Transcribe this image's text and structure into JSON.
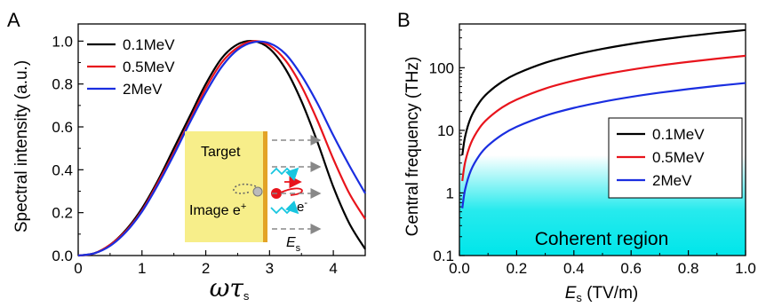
{
  "chart_data": [
    {
      "type": "line",
      "panel_label": "A",
      "xlabel_main": "ωτ",
      "xlabel_sub": "s",
      "ylabel": "Spectral intensity (a.u.)",
      "xlim": [
        0,
        4.5
      ],
      "ylim": [
        0,
        1.08
      ],
      "xticks": [
        "0",
        "1",
        "2",
        "3",
        "4"
      ],
      "yticks": [
        "0.0",
        "0.2",
        "0.4",
        "0.6",
        "0.8",
        "1.0"
      ],
      "legend_position": "top-left",
      "series": [
        {
          "name": "0.1MeV",
          "color": "#000000",
          "x": [
            0,
            0.25,
            0.5,
            0.75,
            1.0,
            1.25,
            1.5,
            1.75,
            2.0,
            2.25,
            2.5,
            2.75,
            3.0,
            3.25,
            3.5,
            3.75,
            4.0,
            4.25,
            4.5
          ],
          "y": [
            0,
            0.01,
            0.05,
            0.12,
            0.22,
            0.35,
            0.5,
            0.65,
            0.8,
            0.92,
            0.985,
            1.0,
            0.965,
            0.87,
            0.72,
            0.53,
            0.32,
            0.15,
            0.03
          ]
        },
        {
          "name": "0.5MeV",
          "color": "#e8141c",
          "x": [
            0,
            0.25,
            0.5,
            0.75,
            1.0,
            1.25,
            1.5,
            1.75,
            2.0,
            2.25,
            2.5,
            2.75,
            3.0,
            3.25,
            3.5,
            3.75,
            4.0,
            4.25,
            4.5
          ],
          "y": [
            0,
            0.01,
            0.05,
            0.115,
            0.21,
            0.34,
            0.48,
            0.63,
            0.78,
            0.9,
            0.97,
            1.0,
            0.98,
            0.91,
            0.79,
            0.63,
            0.45,
            0.29,
            0.17
          ]
        },
        {
          "name": "2MeV",
          "color": "#1a2ee0",
          "x": [
            0,
            0.25,
            0.5,
            0.75,
            1.0,
            1.25,
            1.5,
            1.75,
            2.0,
            2.25,
            2.5,
            2.75,
            3.0,
            3.25,
            3.5,
            3.75,
            4.0,
            4.25,
            4.5
          ],
          "y": [
            0,
            0.01,
            0.045,
            0.11,
            0.205,
            0.33,
            0.47,
            0.62,
            0.76,
            0.88,
            0.96,
            0.995,
            0.99,
            0.94,
            0.84,
            0.71,
            0.56,
            0.42,
            0.29
          ]
        }
      ],
      "inset": {
        "target_label": "Target",
        "image_label": "Image e",
        "image_sup": "+",
        "electron_label": "e",
        "electron_sup": "-",
        "field_label": "E",
        "field_sub": "s",
        "target_color": "#f7ee8a",
        "edge_color": "#e3a326",
        "electron_color": "#e8141c",
        "wave_color": "#18c6e0"
      }
    },
    {
      "type": "line",
      "panel_label": "B",
      "xlabel_main": "E",
      "xlabel_sub": "s",
      "xlabel_rest": " (TV/m)",
      "ylabel": "Central frequency (THz)",
      "yscale": "log",
      "xlim": [
        0,
        1.0
      ],
      "ylim": [
        0.1,
        500
      ],
      "xticks": [
        "0.0",
        "0.2",
        "0.4",
        "0.6",
        "0.8",
        "1.0"
      ],
      "yticks": [
        "0.1",
        "1",
        "10",
        "100"
      ],
      "legend_position": "center-right",
      "region_label": "Coherent region",
      "region_ymax": 4,
      "region_color": "#00e6ea",
      "series": [
        {
          "name": "0.1MeV",
          "color": "#000000",
          "x": [
            0.01,
            0.02,
            0.04,
            0.07,
            0.1,
            0.15,
            0.2,
            0.3,
            0.4,
            0.5,
            0.6,
            0.7,
            0.8,
            0.9,
            1.0
          ],
          "y": [
            4,
            8,
            16,
            28,
            40,
            60,
            80,
            120,
            160,
            200,
            240,
            280,
            320,
            360,
            400
          ]
        },
        {
          "name": "0.5MeV",
          "color": "#e8141c",
          "x": [
            0.01,
            0.02,
            0.04,
            0.07,
            0.1,
            0.15,
            0.2,
            0.3,
            0.4,
            0.5,
            0.6,
            0.7,
            0.8,
            0.9,
            1.0
          ],
          "y": [
            1.55,
            3.1,
            6.2,
            10.9,
            15.5,
            23.3,
            31,
            46.5,
            62,
            77.5,
            93,
            108.5,
            124,
            139.5,
            155
          ]
        },
        {
          "name": "2MeV",
          "color": "#1a2ee0",
          "x": [
            0.01,
            0.02,
            0.04,
            0.07,
            0.1,
            0.15,
            0.2,
            0.3,
            0.4,
            0.5,
            0.6,
            0.7,
            0.8,
            0.9,
            1.0
          ],
          "y": [
            0.57,
            1.14,
            2.28,
            3.99,
            5.7,
            8.55,
            11.4,
            17.1,
            22.8,
            28.5,
            34.2,
            39.9,
            45.6,
            51.3,
            57
          ]
        }
      ]
    }
  ]
}
